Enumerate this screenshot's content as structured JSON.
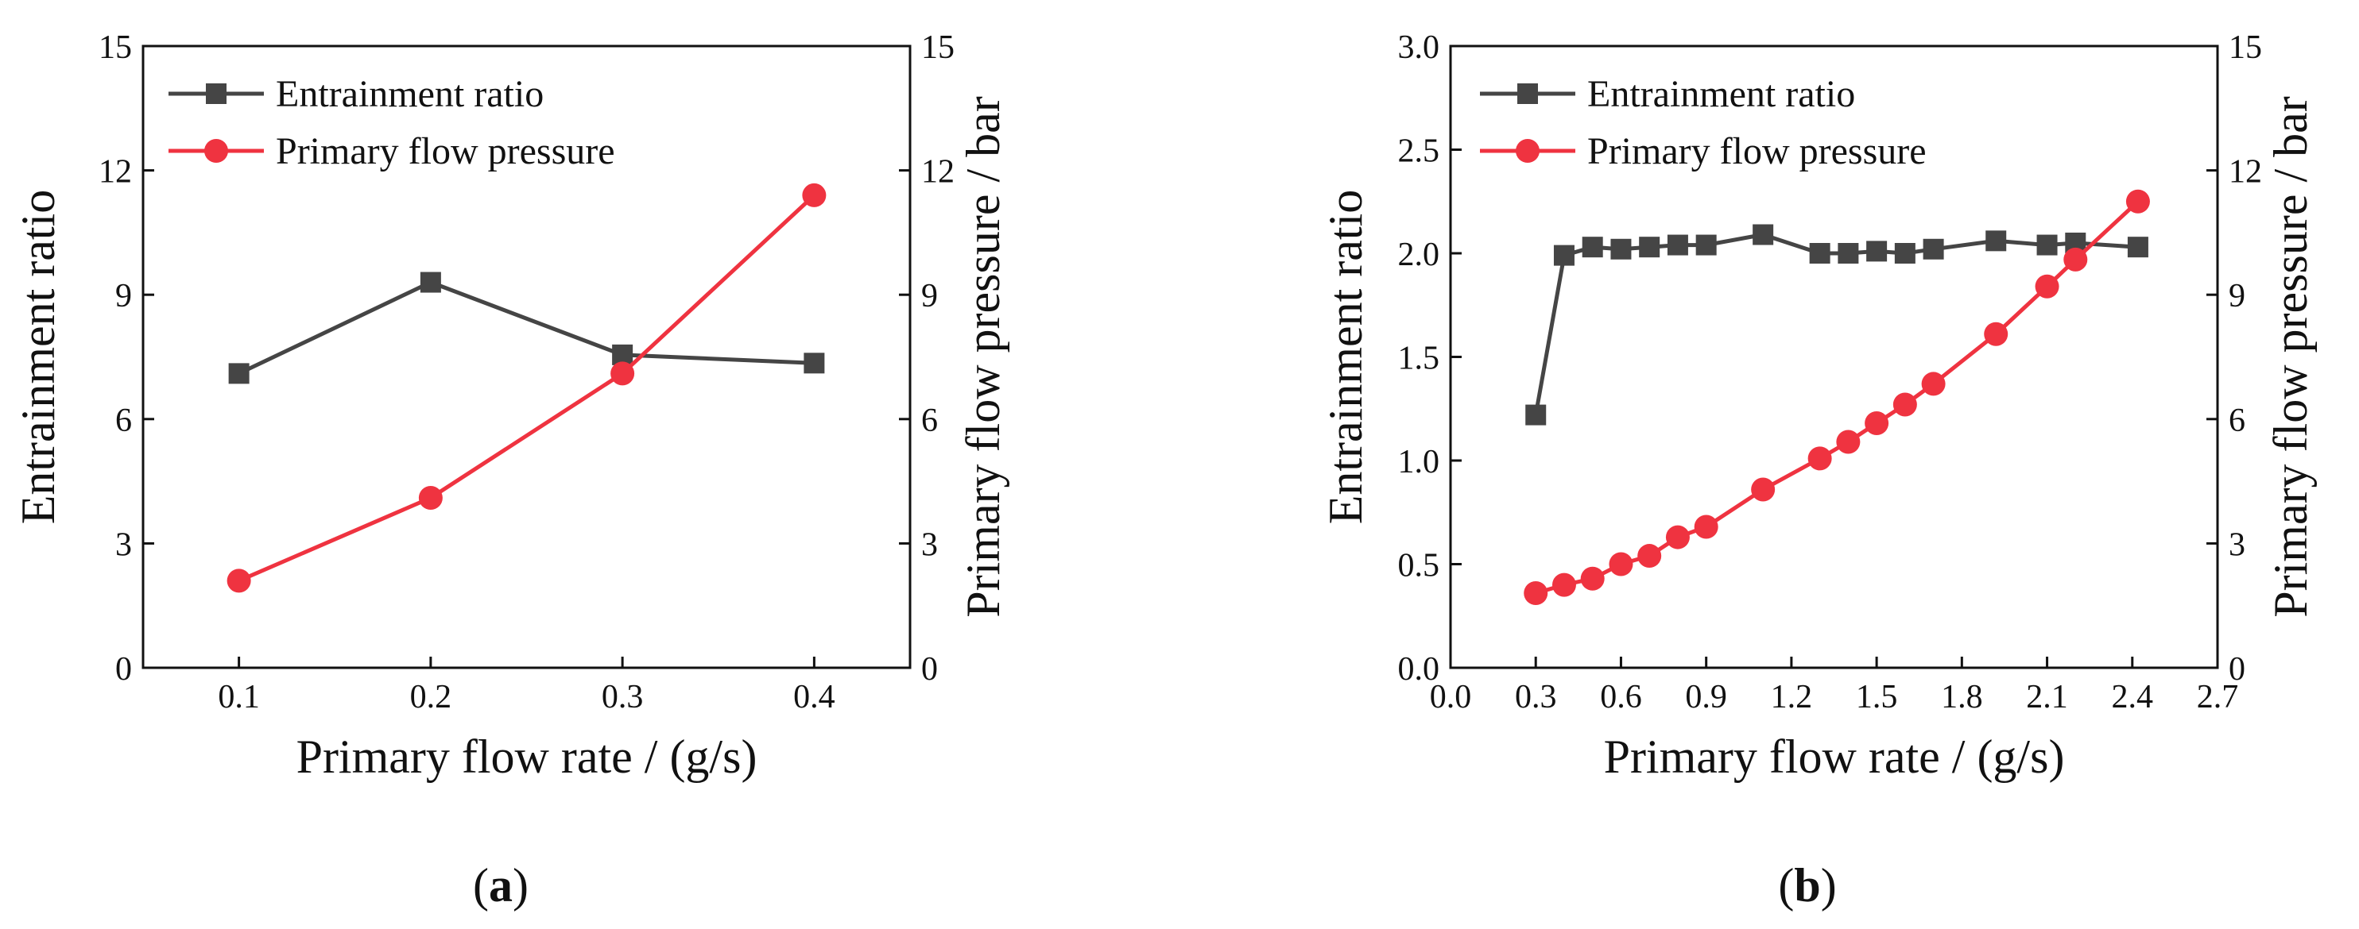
{
  "chart_data": [
    {
      "type": "line",
      "panel_label": "a",
      "xlabel": "Primary flow rate / (g/s)",
      "ylabel": "Entrainment ratio",
      "y2label": "Primary flow pressure / bar",
      "xlim": [
        0.05,
        0.45
      ],
      "ylim": [
        0,
        15
      ],
      "y2lim": [
        0,
        15
      ],
      "xticks": [
        "0.1",
        "0.2",
        "0.3",
        "0.4"
      ],
      "yticks": [
        "0",
        "3",
        "6",
        "9",
        "12",
        "15"
      ],
      "y2ticks": [
        "0",
        "3",
        "6",
        "9",
        "12",
        "15"
      ],
      "legend_position": "top-left",
      "series": [
        {
          "name": "Entrainment ratio",
          "axis": "left",
          "color": "#454545",
          "marker": "square",
          "x": [
            0.1,
            0.2,
            0.3,
            0.4
          ],
          "values": [
            7.1,
            9.3,
            7.55,
            7.35
          ]
        },
        {
          "name": "Primary flow pressure",
          "axis": "right",
          "color": "#ef3340",
          "marker": "circle",
          "x": [
            0.1,
            0.2,
            0.3,
            0.4
          ],
          "values": [
            2.1,
            4.1,
            7.1,
            11.4
          ]
        }
      ]
    },
    {
      "type": "line",
      "panel_label": "b",
      "xlabel": "Primary flow rate / (g/s)",
      "ylabel": "Entrainment ratio",
      "y2label": "Primary flow pressure / bar",
      "xlim": [
        0,
        2.7
      ],
      "ylim": [
        0,
        3
      ],
      "y2lim": [
        0,
        15
      ],
      "xticks": [
        "0.0",
        "0.3",
        "0.6",
        "0.9",
        "1.2",
        "1.5",
        "1.8",
        "2.1",
        "2.4",
        "2.7"
      ],
      "yticks": [
        "0.0",
        "0.5",
        "1.0",
        "1.5",
        "2.0",
        "2.5",
        "3.0"
      ],
      "y2ticks": [
        "0",
        "3",
        "6",
        "9",
        "12",
        "15"
      ],
      "legend_position": "top-left",
      "series": [
        {
          "name": "Entrainment ratio",
          "axis": "left",
          "color": "#454545",
          "marker": "square",
          "x": [
            0.3,
            0.4,
            0.5,
            0.6,
            0.7,
            0.8,
            0.9,
            1.1,
            1.3,
            1.4,
            1.5,
            1.6,
            1.7,
            1.92,
            2.1,
            2.2,
            2.42
          ],
          "values": [
            1.22,
            1.99,
            2.03,
            2.02,
            2.03,
            2.04,
            2.04,
            2.09,
            2.0,
            2.0,
            2.01,
            2.0,
            2.02,
            2.06,
            2.04,
            2.05,
            2.03
          ]
        },
        {
          "name": "Primary flow pressure",
          "axis": "right",
          "color": "#ef3340",
          "marker": "circle",
          "x": [
            0.3,
            0.4,
            0.5,
            0.6,
            0.7,
            0.8,
            0.9,
            1.1,
            1.3,
            1.4,
            1.5,
            1.6,
            1.7,
            1.92,
            2.1,
            2.2,
            2.42
          ],
          "values": [
            1.8,
            2.0,
            2.15,
            2.5,
            2.7,
            3.15,
            3.4,
            4.3,
            5.05,
            5.45,
            5.9,
            6.35,
            6.85,
            8.05,
            9.2,
            9.85,
            11.25
          ]
        }
      ]
    }
  ]
}
